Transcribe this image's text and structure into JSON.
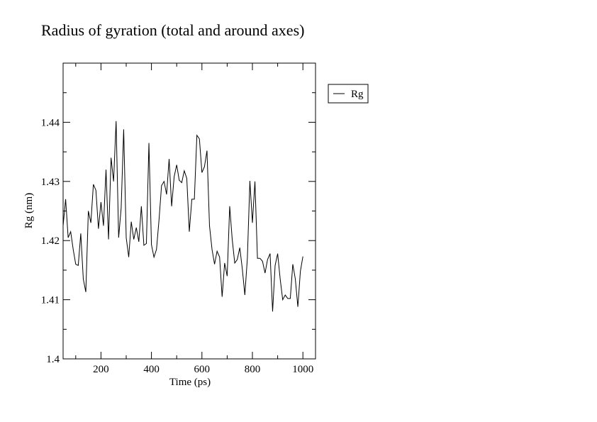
{
  "chart_data": {
    "type": "line",
    "title": "Radius of gyration (total and around axes)",
    "xlabel": "Time (ps)",
    "ylabel": "Rg (nm)",
    "xlim": [
      50,
      1050
    ],
    "ylim": [
      1.4,
      1.45
    ],
    "x_ticks": [
      200,
      400,
      600,
      800,
      1000
    ],
    "y_ticks": [
      1.4,
      1.41,
      1.42,
      1.43,
      1.44
    ],
    "x_tick_labels": [
      "200",
      "400",
      "600",
      "800",
      "1000"
    ],
    "y_tick_labels": [
      "1.4",
      "1.41",
      "1.42",
      "1.43",
      "1.44"
    ],
    "legend": {
      "position": "right-outside-top"
    },
    "series": [
      {
        "name": "Rg",
        "color": "#000000",
        "x": [
          50,
          60,
          70,
          80,
          90,
          100,
          110,
          120,
          130,
          140,
          150,
          160,
          170,
          180,
          190,
          200,
          210,
          220,
          230,
          240,
          250,
          260,
          270,
          280,
          290,
          300,
          310,
          320,
          330,
          340,
          350,
          360,
          370,
          380,
          390,
          400,
          410,
          420,
          430,
          440,
          450,
          460,
          470,
          480,
          490,
          500,
          510,
          520,
          530,
          540,
          550,
          560,
          570,
          580,
          590,
          600,
          610,
          620,
          630,
          640,
          650,
          660,
          670,
          680,
          690,
          700,
          710,
          720,
          730,
          740,
          750,
          760,
          770,
          780,
          790,
          800,
          810,
          820,
          830,
          840,
          850,
          860,
          870,
          880,
          890,
          900,
          910,
          920,
          930,
          940,
          950,
          960,
          970,
          980,
          990,
          1000
        ],
        "values": [
          1.4225,
          1.427,
          1.4205,
          1.4215,
          1.4185,
          1.416,
          1.4158,
          1.4212,
          1.4135,
          1.4113,
          1.425,
          1.423,
          1.4295,
          1.4285,
          1.422,
          1.4265,
          1.4225,
          1.432,
          1.4202,
          1.434,
          1.43,
          1.4402,
          1.4205,
          1.4255,
          1.4388,
          1.4205,
          1.4172,
          1.4232,
          1.4202,
          1.4222,
          1.4198,
          1.4258,
          1.4192,
          1.4195,
          1.4365,
          1.4193,
          1.4172,
          1.4185,
          1.4235,
          1.4293,
          1.43,
          1.4278,
          1.4338,
          1.4258,
          1.4308,
          1.4328,
          1.4302,
          1.4298,
          1.4318,
          1.4305,
          1.4215,
          1.427,
          1.427,
          1.4378,
          1.4372,
          1.4315,
          1.4325,
          1.4352,
          1.4225,
          1.4185,
          1.416,
          1.4182,
          1.4172,
          1.4105,
          1.4162,
          1.414,
          1.4258,
          1.4202,
          1.4162,
          1.4168,
          1.4188,
          1.4152,
          1.4108,
          1.417,
          1.4301,
          1.423,
          1.43,
          1.417,
          1.417,
          1.4165,
          1.4145,
          1.4168,
          1.4178,
          1.408,
          1.4158,
          1.4178,
          1.4135,
          1.41,
          1.4108,
          1.4102,
          1.4102,
          1.416,
          1.4135,
          1.4088,
          1.4148,
          1.4173
        ]
      }
    ]
  }
}
